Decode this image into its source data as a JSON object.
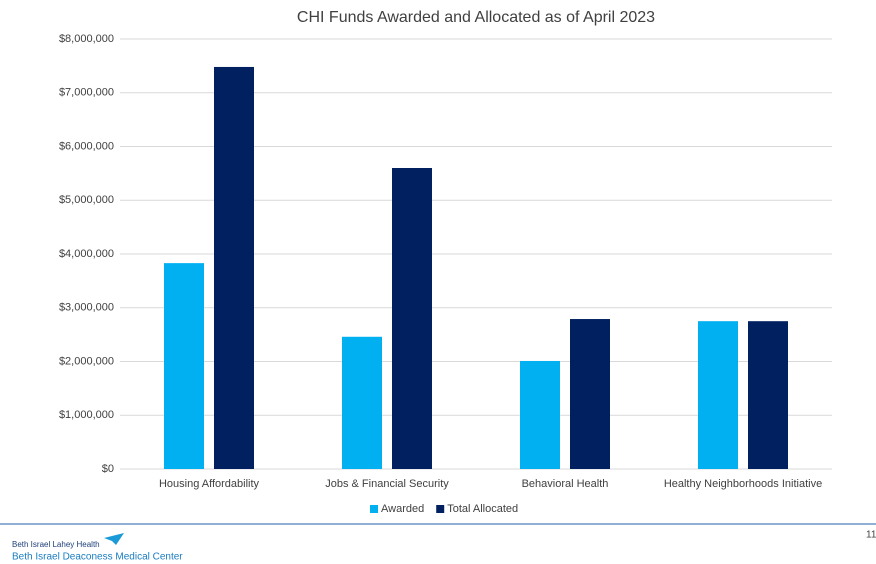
{
  "chart_data": {
    "type": "bar",
    "title": "CHI Funds Awarded and Allocated as of April 2023",
    "categories": [
      "Housing Affordability",
      "Jobs & Financial Security",
      "Behavioral Health",
      "Healthy Neighborhoods Initiative"
    ],
    "series": [
      {
        "name": "Awarded",
        "color": "#00b0f0",
        "values": [
          3830000,
          2460000,
          2010000,
          2750000
        ]
      },
      {
        "name": "Total Allocated",
        "color": "#002060",
        "values": [
          7480000,
          5600000,
          2790000,
          2750000
        ]
      }
    ],
    "ylim": [
      0,
      8000000
    ],
    "yticks": [
      {
        "value": 0,
        "label": "$0"
      },
      {
        "value": 1000000,
        "label": "$1,000,000"
      },
      {
        "value": 2000000,
        "label": "$2,000,000"
      },
      {
        "value": 3000000,
        "label": "$3,000,000"
      },
      {
        "value": 4000000,
        "label": "$4,000,000"
      },
      {
        "value": 5000000,
        "label": "$5,000,000"
      },
      {
        "value": 6000000,
        "label": "$6,000,000"
      },
      {
        "value": 7000000,
        "label": "$7,000,000"
      },
      {
        "value": 8000000,
        "label": "$8,000,000"
      }
    ],
    "grid": true,
    "legend": "bottom"
  },
  "footer": {
    "org": "Beth Israel Lahey Health",
    "hospital": "Beth Israel Deaconess Medical Center",
    "page": "11"
  }
}
